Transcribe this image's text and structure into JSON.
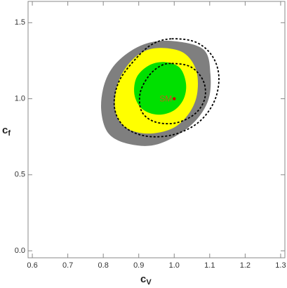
{
  "chart_data": {
    "type": "contour",
    "xlabel": {
      "main": "c",
      "sub": "V"
    },
    "ylabel": {
      "main": "c",
      "sub": "f"
    },
    "xlim": [
      0.588,
      1.312
    ],
    "ylim": [
      -0.046,
      1.64
    ],
    "xticks": [
      0.6,
      0.7,
      0.8,
      0.9,
      {
        "value": 1,
        "label": "1.0"
      },
      1.1,
      1.2,
      1.3
    ],
    "yticks": [
      {
        "value": 0,
        "label": "0.0"
      },
      0.5,
      {
        "value": 1,
        "label": "1.0"
      },
      1.5
    ],
    "contours": [
      {
        "fill": "#7f7f7f",
        "x": [
          0.993,
          1.082,
          1.102,
          1.094,
          1.043,
          0.954,
          0.875,
          0.815,
          0.794,
          0.806,
          0.845,
          0.914
        ],
        "y": [
          1.38,
          1.325,
          1.163,
          0.978,
          0.817,
          0.701,
          0.701,
          0.771,
          0.932,
          1.117,
          1.255,
          1.357
        ]
      },
      {
        "fill": "#ffff00",
        "x": [
          0.964,
          1.027,
          1.062,
          1.064,
          1.039,
          0.993,
          0.924,
          0.865,
          0.835,
          0.837,
          0.865,
          0.91
        ],
        "y": [
          1.334,
          1.301,
          1.186,
          1.025,
          0.895,
          0.803,
          0.771,
          0.808,
          0.909,
          1.071,
          1.209,
          1.306
        ]
      },
      {
        "fill": "#00e000",
        "x": [
          0.973,
          1.015,
          1.033,
          1.027,
          0.999,
          0.954,
          0.91,
          0.888,
          0.894,
          0.928
        ],
        "y": [
          1.241,
          1.205,
          1.103,
          1.001,
          0.923,
          0.895,
          0.932,
          1.025,
          1.14,
          1.218
        ]
      },
      {
        "stroke": "#000000",
        "dashed": true,
        "x": [
          0.993,
          1.062,
          1.108,
          1.126,
          1.112,
          1.066,
          0.993,
          0.914,
          0.855,
          0.831,
          0.845,
          0.894,
          0.94
        ],
        "y": [
          1.394,
          1.371,
          1.278,
          1.14,
          0.978,
          0.84,
          0.761,
          0.757,
          0.826,
          0.955,
          1.117,
          1.269,
          1.361
        ]
      },
      {
        "stroke": "#000000",
        "dashed": true,
        "x": [
          0.993,
          1.047,
          1.082,
          1.086,
          1.058,
          1.003,
          0.944,
          0.908,
          0.904,
          0.928,
          0.96
        ],
        "y": [
          1.232,
          1.209,
          1.117,
          1.001,
          0.9,
          0.84,
          0.849,
          0.918,
          1.038,
          1.149,
          1.214
        ]
      }
    ],
    "point": {
      "label": "SM",
      "x": 1,
      "y": 1,
      "color": "#cc0000",
      "label_color": "#b5651d"
    }
  }
}
